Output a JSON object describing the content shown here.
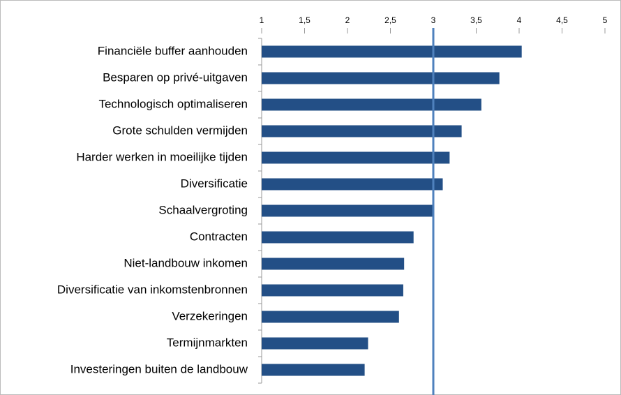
{
  "chart_data": {
    "type": "barh",
    "categories": [
      "Financiële buffer aanhouden",
      "Besparen op privé-uitgaven",
      "Technologisch optimaliseren",
      "Grote schulden vermijden",
      "Harder werken in moeilijke tijden",
      "Diversificatie",
      "Schaalvergroting",
      "Contracten",
      "Niet-landbouw inkomen",
      "Diversificatie van inkomstenbronnen",
      "Verzekeringen",
      "Termijnmarkten",
      "Investeringen buiten de landbouw"
    ],
    "values": [
      4.03,
      3.77,
      3.56,
      3.33,
      3.19,
      3.11,
      3.0,
      2.77,
      2.66,
      2.65,
      2.6,
      2.24,
      2.2
    ],
    "color": "#234f86",
    "xlim": [
      1,
      5
    ],
    "xticks": [
      1,
      {
        "value": 1.5,
        "label": "1,5"
      },
      2,
      {
        "value": 2.5,
        "label": "2,5"
      },
      3,
      {
        "value": 3.5,
        "label": "3,5"
      },
      4,
      {
        "value": 4.5,
        "label": "4,5"
      },
      5
    ],
    "reference_line": {
      "value": 3,
      "color": "#4f81bd"
    }
  }
}
